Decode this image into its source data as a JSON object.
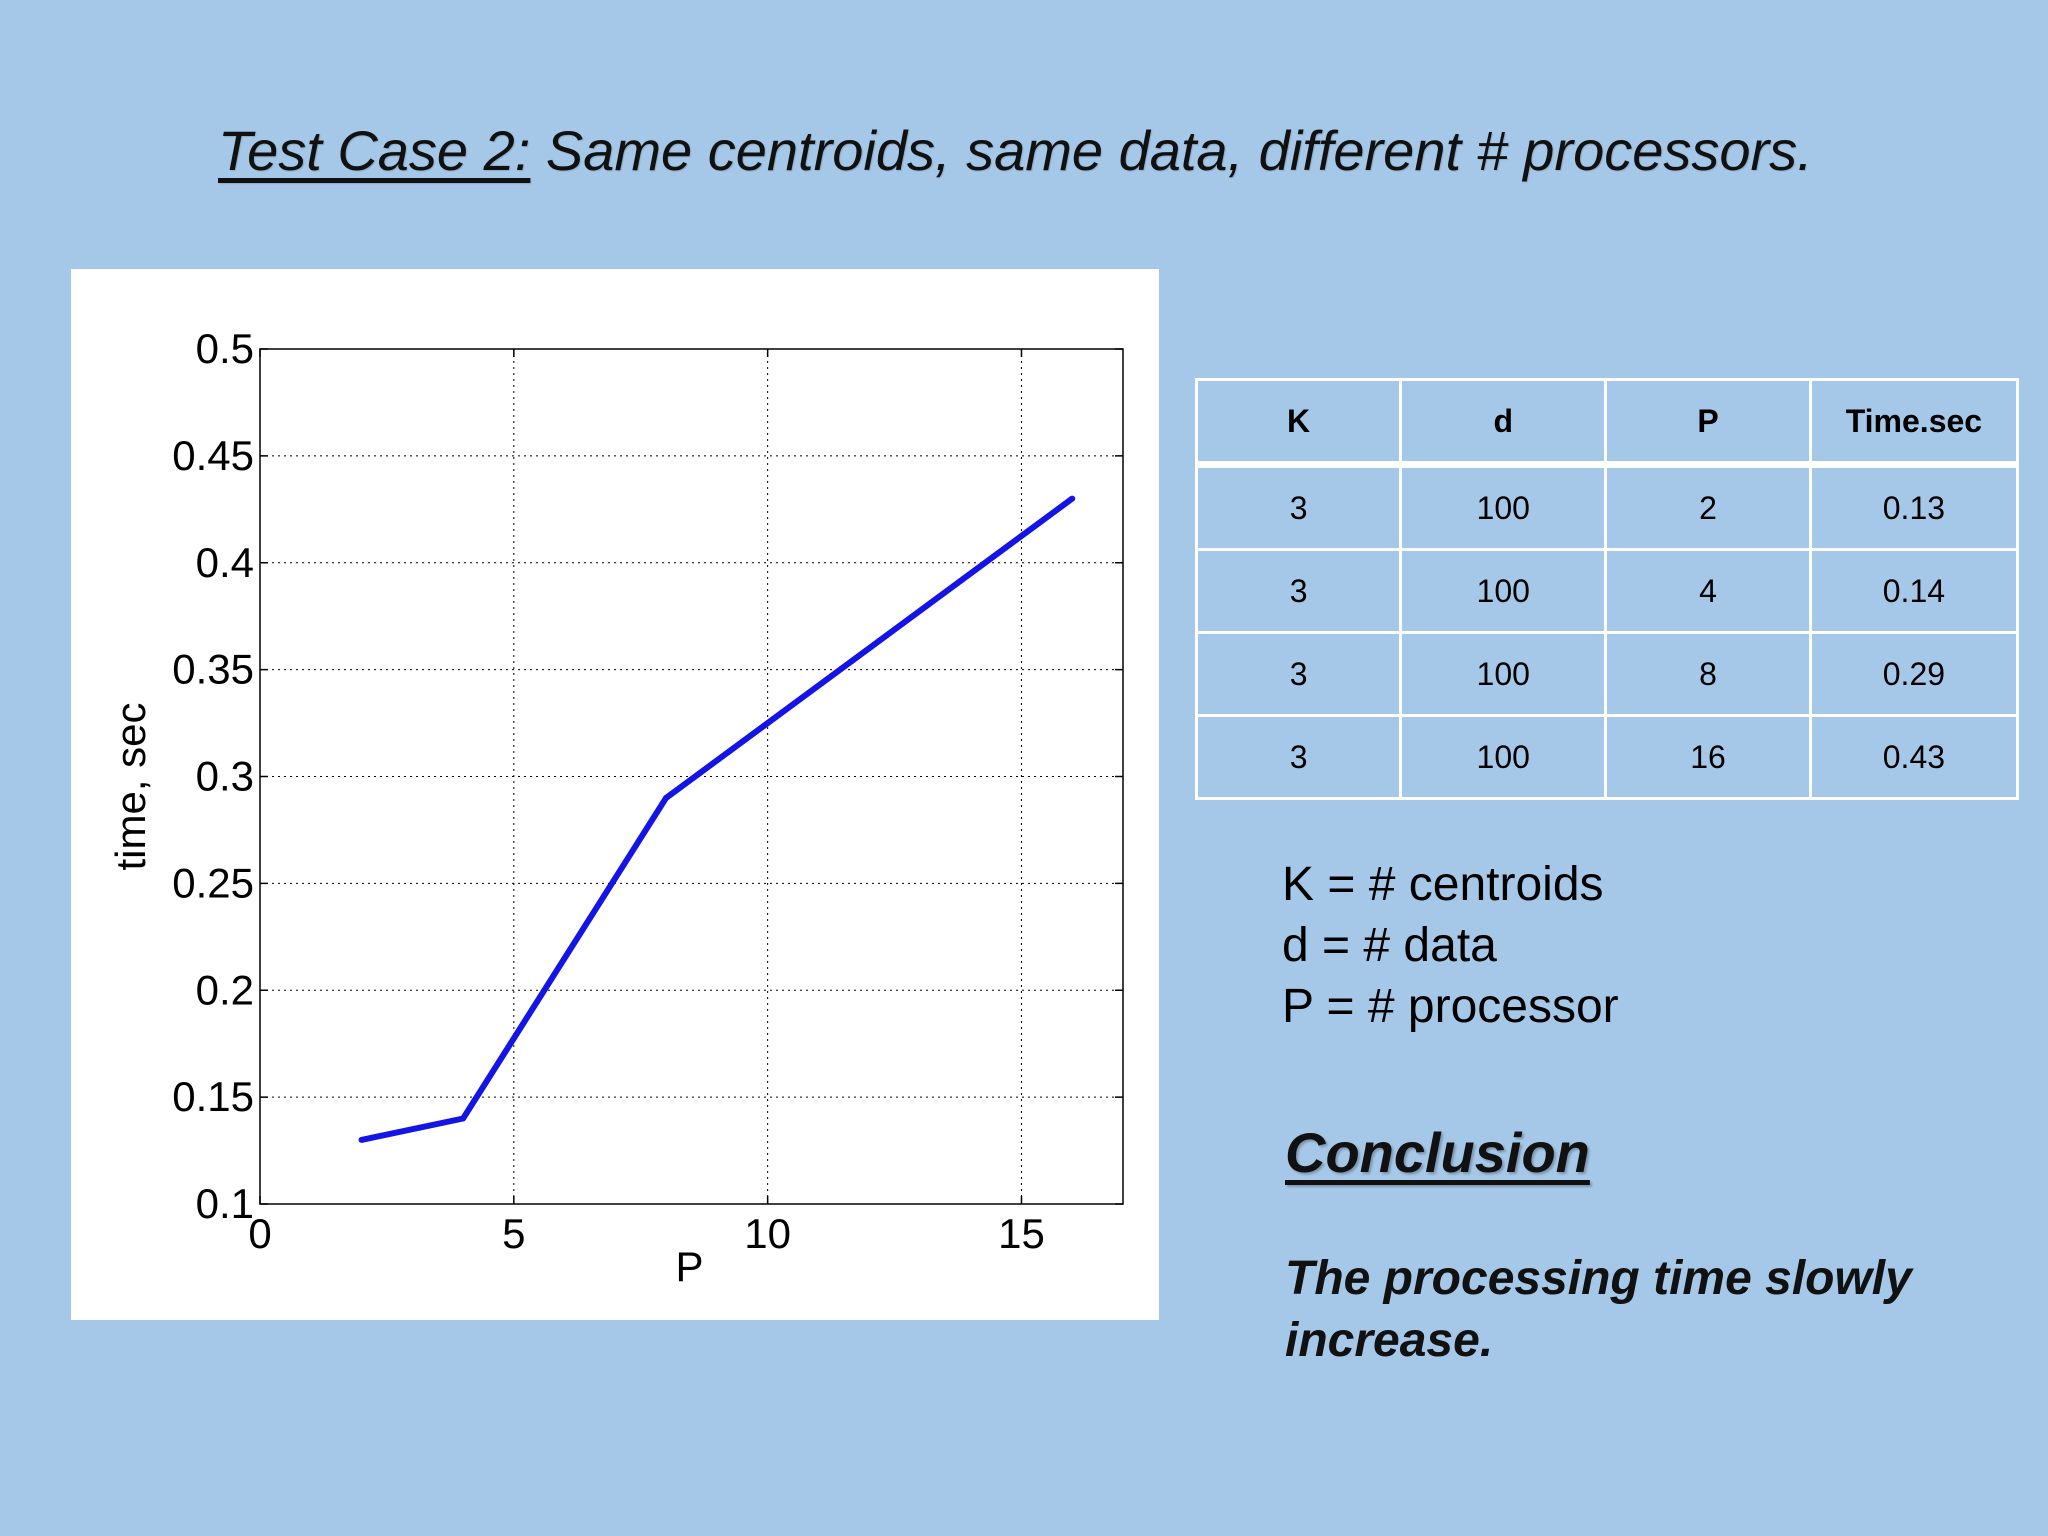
{
  "slide": {
    "title_lead": "Test Case 2:",
    "title_rest": " Same centroids, same data, different # processors."
  },
  "table": {
    "headers": [
      "K",
      "d",
      "P",
      "Time.sec"
    ],
    "rows": [
      [
        "3",
        "100",
        "2",
        "0.13"
      ],
      [
        "3",
        "100",
        "4",
        "0.14"
      ],
      [
        "3",
        "100",
        "8",
        "0.29"
      ],
      [
        "3",
        "100",
        "16",
        "0.43"
      ]
    ]
  },
  "legend": {
    "lines": [
      "K = # centroids",
      "d = # data",
      "P = # processor"
    ]
  },
  "conclusion": {
    "heading": "Conclusion",
    "text": "The processing time slowly increase."
  },
  "chart_data": {
    "type": "line",
    "x": [
      2,
      4,
      8,
      16
    ],
    "series": [
      {
        "values": [
          0.13,
          0.14,
          0.29,
          0.43
        ]
      }
    ],
    "xlabel": "P",
    "ylabel": "time, sec",
    "xlim": [
      0,
      17
    ],
    "ylim": [
      0.1,
      0.5
    ],
    "xticks": [
      0,
      5,
      10,
      15
    ],
    "yticks": [
      0.1,
      0.15,
      0.2,
      0.25,
      0.3,
      0.35,
      0.4,
      0.45,
      0.5
    ],
    "xtick_labels": [
      "0",
      "5",
      "10",
      "15"
    ],
    "ytick_labels": [
      "0.1",
      "0.15",
      "0.2",
      "0.25",
      "0.3",
      "0.35",
      "0.4",
      "0.45",
      "0.5"
    ],
    "grid": true,
    "line_color": "#1414e6"
  }
}
